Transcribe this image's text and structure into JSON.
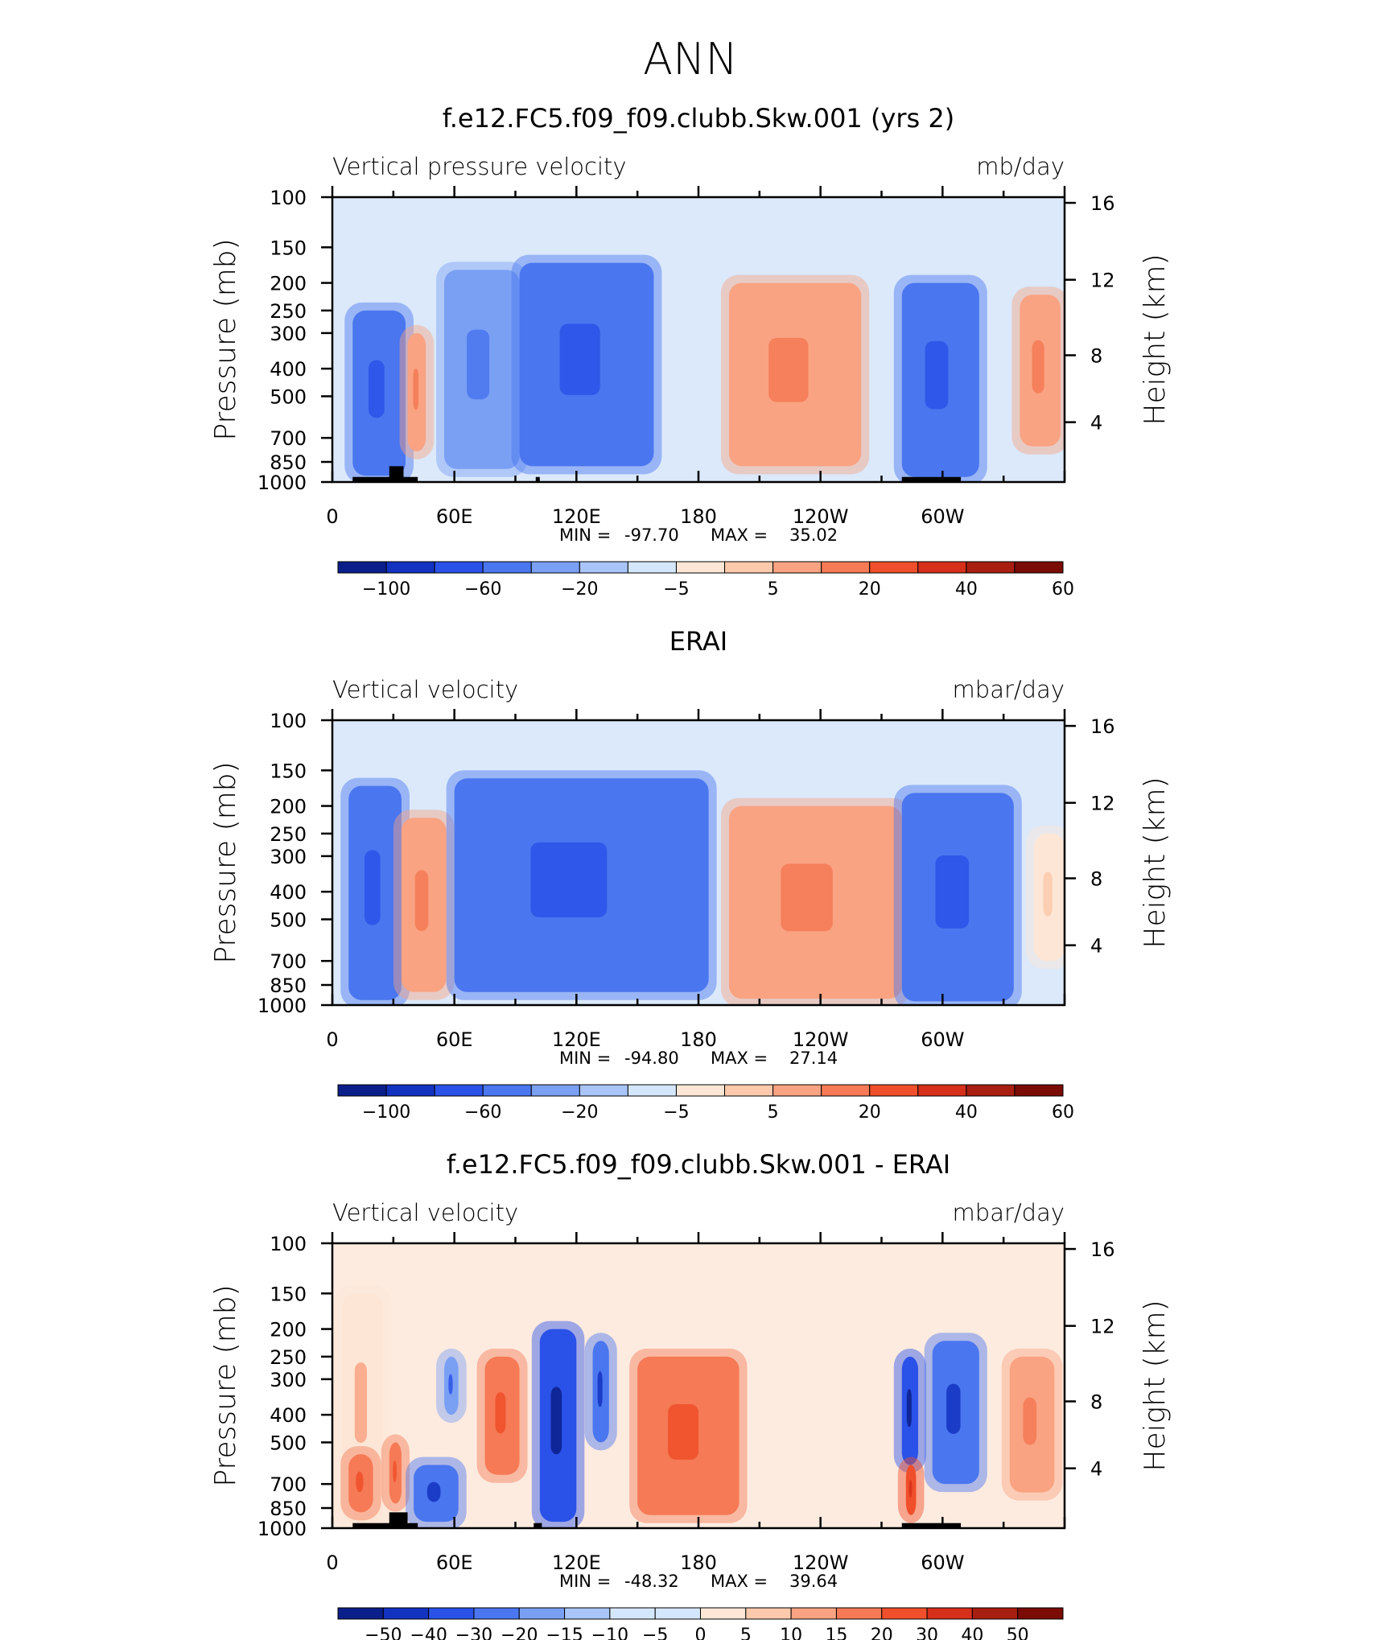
{
  "page": {
    "title": "ANN"
  },
  "colors": {
    "blue_scale": [
      "#0b1f8a",
      "#1232c0",
      "#2a52e8",
      "#4a76ef",
      "#7aa0f4",
      "#a8c4f8",
      "#d4e6fb"
    ],
    "red_scale": [
      "#fde6d5",
      "#fcc9ac",
      "#f9a382",
      "#f57a55",
      "#ef4f2a",
      "#d62f1a",
      "#a81e10",
      "#7a0b05"
    ],
    "topography": "#000000"
  },
  "chart_data": [
    {
      "type": "heatmap",
      "title": "f.e12.FC5.f09_f09.clubb.Skw.001 (yrs 2)",
      "left_label": "Vertical pressure velocity",
      "right_label": "mb/day",
      "ylabel": "Pressure (mb)",
      "y2label": "Height (km)",
      "y_ticks": [
        "100",
        "150",
        "200",
        "250",
        "300",
        "400",
        "500",
        "700",
        "850",
        "1000"
      ],
      "y2_ticks": [
        "16",
        "12",
        "8",
        "4"
      ],
      "x_ticks": [
        "0",
        "60E",
        "120E",
        "180",
        "120W",
        "60W"
      ],
      "min_label": "MIN =",
      "min_value": "-97.70",
      "max_label": "MAX =",
      "max_value": "35.02",
      "colorbar_labels": [
        "−100",
        "−60",
        "−20",
        "−5",
        "5",
        "20",
        "40",
        "60"
      ],
      "regions": [
        {
          "x0": 10,
          "x1": 36,
          "p_top": 250,
          "p_bot": 950,
          "level": -40
        },
        {
          "x0": 37,
          "x1": 46,
          "p_top": 300,
          "p_bot": 780,
          "level": 25
        },
        {
          "x0": 55,
          "x1": 92,
          "p_top": 180,
          "p_bot": 900,
          "level": -20
        },
        {
          "x0": 92,
          "x1": 158,
          "p_top": 170,
          "p_bot": 880,
          "level": -40
        },
        {
          "x0": 195,
          "x1": 260,
          "p_top": 200,
          "p_bot": 880,
          "level": 20
        },
        {
          "x0": 280,
          "x1": 318,
          "p_top": 200,
          "p_bot": 960,
          "level": -40
        },
        {
          "x0": 338,
          "x1": 358,
          "p_top": 220,
          "p_bot": 750,
          "level": 20
        }
      ],
      "topography": [
        {
          "x0": 10,
          "x1": 42,
          "p_top": 960
        },
        {
          "x0": 28,
          "x1": 35,
          "p_top": 880
        },
        {
          "x0": 100,
          "x1": 102,
          "p_top": 960
        },
        {
          "x0": 280,
          "x1": 309,
          "p_top": 960
        }
      ]
    },
    {
      "type": "heatmap",
      "title": "ERAI",
      "left_label": "Vertical velocity",
      "right_label": "mbar/day",
      "ylabel": "Pressure (mb)",
      "y2label": "Height (km)",
      "y_ticks": [
        "100",
        "150",
        "200",
        "250",
        "300",
        "400",
        "500",
        "700",
        "850",
        "1000"
      ],
      "y2_ticks": [
        "16",
        "12",
        "8",
        "4"
      ],
      "x_ticks": [
        "0",
        "60E",
        "120E",
        "180",
        "120W",
        "60W"
      ],
      "min_label": "MIN =",
      "min_value": "-94.80",
      "max_label": "MAX =",
      "max_value": "27.14",
      "colorbar_labels": [
        "−100",
        "−60",
        "−20",
        "−5",
        "5",
        "20",
        "40",
        "60"
      ],
      "regions": [
        {
          "x0": 8,
          "x1": 34,
          "p_top": 170,
          "p_bot": 960,
          "level": -40
        },
        {
          "x0": 34,
          "x1": 56,
          "p_top": 220,
          "p_bot": 900,
          "level": 20
        },
        {
          "x0": 60,
          "x1": 185,
          "p_top": 160,
          "p_bot": 900,
          "level": -40
        },
        {
          "x0": 195,
          "x1": 280,
          "p_top": 200,
          "p_bot": 950,
          "level": 20
        },
        {
          "x0": 280,
          "x1": 335,
          "p_top": 180,
          "p_bot": 970,
          "level": -40
        },
        {
          "x0": 345,
          "x1": 360,
          "p_top": 250,
          "p_bot": 700,
          "level": 5
        }
      ],
      "topography": []
    },
    {
      "type": "heatmap",
      "title": "f.e12.FC5.f09_f09.clubb.Skw.001 - ERAI",
      "left_label": "Vertical velocity",
      "right_label": "mbar/day",
      "ylabel": "Pressure (mb)",
      "y2label": "Height (km)",
      "y_ticks": [
        "100",
        "150",
        "200",
        "250",
        "300",
        "400",
        "500",
        "700",
        "850",
        "1000"
      ],
      "y2_ticks": [
        "16",
        "12",
        "8",
        "4"
      ],
      "x_ticks": [
        "0",
        "60E",
        "120E",
        "180",
        "120W",
        "60W"
      ],
      "min_label": "MIN =",
      "min_value": "-48.32",
      "max_label": "MAX =",
      "max_value": "39.64",
      "colorbar_labels": [
        "−50",
        "−40",
        "−30",
        "−20",
        "−15",
        "−10",
        "−5",
        "0",
        "5",
        "10",
        "15",
        "20",
        "30",
        "40",
        "50"
      ],
      "regions": [
        {
          "x0": 5,
          "x1": 25,
          "p_top": 150,
          "p_bot": 960,
          "level": 5
        },
        {
          "x0": 8,
          "x1": 20,
          "p_top": 550,
          "p_bot": 880,
          "level": 20
        },
        {
          "x0": 28,
          "x1": 34,
          "p_top": 500,
          "p_bot": 820,
          "level": 20
        },
        {
          "x0": 40,
          "x1": 62,
          "p_top": 600,
          "p_bot": 950,
          "level": -20
        },
        {
          "x0": 55,
          "x1": 62,
          "p_top": 250,
          "p_bot": 400,
          "level": -15
        },
        {
          "x0": 75,
          "x1": 92,
          "p_top": 250,
          "p_bot": 650,
          "level": 20
        },
        {
          "x0": 102,
          "x1": 120,
          "p_top": 200,
          "p_bot": 950,
          "level": -30
        },
        {
          "x0": 128,
          "x1": 136,
          "p_top": 220,
          "p_bot": 500,
          "level": -20
        },
        {
          "x0": 150,
          "x1": 200,
          "p_top": 250,
          "p_bot": 900,
          "level": 20
        },
        {
          "x0": 280,
          "x1": 288,
          "p_top": 250,
          "p_bot": 600,
          "level": -30
        },
        {
          "x0": 282,
          "x1": 287,
          "p_top": 600,
          "p_bot": 900,
          "level": 30
        },
        {
          "x0": 295,
          "x1": 318,
          "p_top": 220,
          "p_bot": 700,
          "level": -20
        },
        {
          "x0": 333,
          "x1": 355,
          "p_top": 250,
          "p_bot": 750,
          "level": 15
        }
      ],
      "topography": [
        {
          "x0": 10,
          "x1": 42,
          "p_top": 960
        },
        {
          "x0": 28,
          "x1": 37,
          "p_top": 880
        },
        {
          "x0": 99,
          "x1": 103,
          "p_top": 960
        },
        {
          "x0": 280,
          "x1": 309,
          "p_top": 960
        }
      ]
    }
  ]
}
